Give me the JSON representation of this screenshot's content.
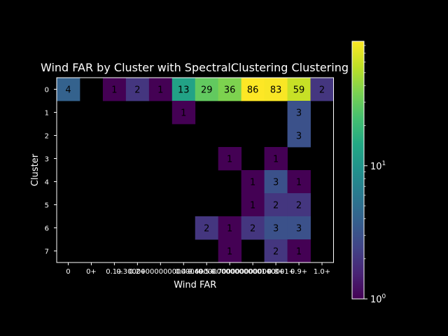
{
  "chart_data": {
    "type": "heatmap",
    "title": "Wind FAR by Cluster with SpectralClustering Clustering",
    "xlabel": "Wind FAR",
    "ylabel": "Cluster",
    "x_categories": [
      "0",
      "0+",
      "0.1+",
      "0.2+",
      "0.3+",
      "0.4+",
      "0.5+",
      "0.6+",
      "0.7+",
      "0.8+",
      "0.9+",
      "1.0+"
    ],
    "x_tick_labels": [
      "0",
      "0+",
      "0.1+",
      "0.2+",
      "0.30000000000000004+",
      "0.4+",
      "0.5+",
      "0.6000000000000001+",
      "0.7000000000000001+",
      "0.8+",
      "0.9+",
      "1.0+"
    ],
    "y_categories": [
      "0",
      "1",
      "2",
      "3",
      "4",
      "5",
      "6",
      "7"
    ],
    "cells": [
      {
        "row": 0,
        "col": 0,
        "value": 4
      },
      {
        "row": 0,
        "col": 2,
        "value": 1
      },
      {
        "row": 0,
        "col": 3,
        "value": 2
      },
      {
        "row": 0,
        "col": 4,
        "value": 1
      },
      {
        "row": 0,
        "col": 5,
        "value": 13
      },
      {
        "row": 0,
        "col": 6,
        "value": 29
      },
      {
        "row": 0,
        "col": 7,
        "value": 36
      },
      {
        "row": 0,
        "col": 8,
        "value": 86
      },
      {
        "row": 0,
        "col": 9,
        "value": 83
      },
      {
        "row": 0,
        "col": 10,
        "value": 59
      },
      {
        "row": 0,
        "col": 11,
        "value": 2
      },
      {
        "row": 1,
        "col": 5,
        "value": 1
      },
      {
        "row": 1,
        "col": 10,
        "value": 3
      },
      {
        "row": 2,
        "col": 10,
        "value": 3
      },
      {
        "row": 3,
        "col": 7,
        "value": 1
      },
      {
        "row": 3,
        "col": 9,
        "value": 1
      },
      {
        "row": 4,
        "col": 8,
        "value": 1
      },
      {
        "row": 4,
        "col": 9,
        "value": 3
      },
      {
        "row": 4,
        "col": 10,
        "value": 1
      },
      {
        "row": 5,
        "col": 8,
        "value": 1
      },
      {
        "row": 5,
        "col": 9,
        "value": 2
      },
      {
        "row": 5,
        "col": 10,
        "value": 2
      },
      {
        "row": 6,
        "col": 6,
        "value": 2
      },
      {
        "row": 6,
        "col": 7,
        "value": 1
      },
      {
        "row": 6,
        "col": 8,
        "value": 2
      },
      {
        "row": 6,
        "col": 9,
        "value": 3
      },
      {
        "row": 6,
        "col": 10,
        "value": 3
      },
      {
        "row": 7,
        "col": 7,
        "value": 1
      },
      {
        "row": 7,
        "col": 9,
        "value": 2
      },
      {
        "row": 7,
        "col": 10,
        "value": 1
      }
    ],
    "colorbar": {
      "scale": "log",
      "range": [
        1,
        86
      ],
      "colormap": "viridis",
      "tick_labels": [
        {
          "value": 1,
          "base": "10",
          "exp": "0"
        },
        {
          "value": 10,
          "base": "10",
          "exp": "1"
        }
      ]
    },
    "background": "#000000"
  }
}
